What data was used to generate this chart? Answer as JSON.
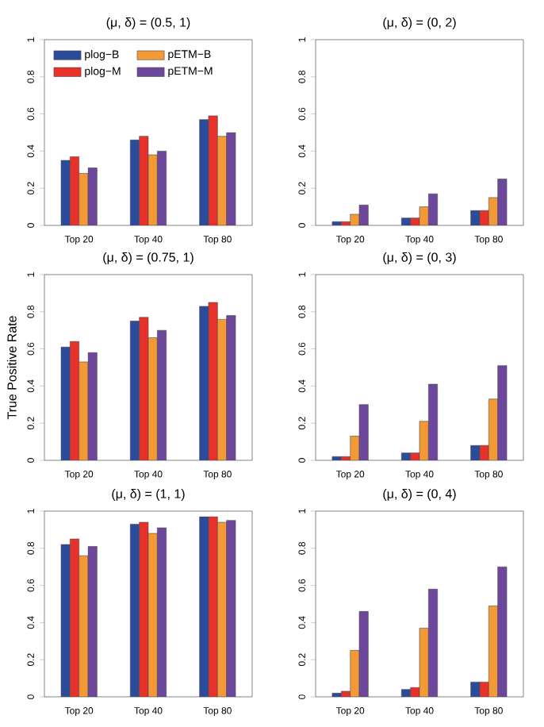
{
  "chart_data": [
    {
      "type": "bar",
      "title": "(μ, δ) = (0.5, 1)",
      "categories": [
        "Top 20",
        "Top 40",
        "Top 80"
      ],
      "ylim": [
        0,
        1
      ],
      "yticks": [
        0,
        0.2,
        0.4,
        0.6,
        0.8,
        1
      ],
      "legend": "top left",
      "series": [
        {
          "name": "plog−B",
          "color": "#2b4b9b",
          "values": [
            0.35,
            0.46,
            0.57
          ]
        },
        {
          "name": "plog−M",
          "color": "#e8312a",
          "values": [
            0.37,
            0.48,
            0.59
          ]
        },
        {
          "name": "pETM−B",
          "color": "#f39a36",
          "values": [
            0.28,
            0.38,
            0.48
          ]
        },
        {
          "name": "pETM−M",
          "color": "#6c479c",
          "values": [
            0.31,
            0.4,
            0.5
          ]
        }
      ]
    },
    {
      "type": "bar",
      "title": "(μ, δ) = (0, 2)",
      "categories": [
        "Top 20",
        "Top 40",
        "Top 80"
      ],
      "ylim": [
        0,
        1
      ],
      "yticks": [
        0,
        0.2,
        0.4,
        0.6,
        0.8,
        1
      ],
      "series": [
        {
          "color": "#2b4b9b",
          "values": [
            0.02,
            0.04,
            0.08
          ]
        },
        {
          "color": "#e8312a",
          "values": [
            0.02,
            0.04,
            0.08
          ]
        },
        {
          "color": "#f39a36",
          "values": [
            0.06,
            0.1,
            0.15
          ]
        },
        {
          "color": "#6c479c",
          "values": [
            0.11,
            0.17,
            0.25
          ]
        }
      ]
    },
    {
      "type": "bar",
      "title": "(μ, δ) = (0.75, 1)",
      "ylabel": "True Positive Rate",
      "categories": [
        "Top 20",
        "Top 40",
        "Top 80"
      ],
      "ylim": [
        0,
        1
      ],
      "yticks": [
        0,
        0.2,
        0.4,
        0.6,
        0.8,
        1
      ],
      "series": [
        {
          "color": "#2b4b9b",
          "values": [
            0.61,
            0.75,
            0.83
          ]
        },
        {
          "color": "#e8312a",
          "values": [
            0.64,
            0.77,
            0.85
          ]
        },
        {
          "color": "#f39a36",
          "values": [
            0.53,
            0.66,
            0.76
          ]
        },
        {
          "color": "#6c479c",
          "values": [
            0.58,
            0.7,
            0.78
          ]
        }
      ]
    },
    {
      "type": "bar",
      "title": "(μ, δ) = (0, 3)",
      "categories": [
        "Top 20",
        "Top 40",
        "Top 80"
      ],
      "ylim": [
        0,
        1
      ],
      "yticks": [
        0,
        0.2,
        0.4,
        0.6,
        0.8,
        1
      ],
      "series": [
        {
          "color": "#2b4b9b",
          "values": [
            0.02,
            0.04,
            0.08
          ]
        },
        {
          "color": "#e8312a",
          "values": [
            0.02,
            0.04,
            0.08
          ]
        },
        {
          "color": "#f39a36",
          "values": [
            0.13,
            0.21,
            0.33
          ]
        },
        {
          "color": "#6c479c",
          "values": [
            0.3,
            0.41,
            0.51
          ]
        }
      ]
    },
    {
      "type": "bar",
      "title": "(μ, δ) = (1, 1)",
      "categories": [
        "Top 20",
        "Top 40",
        "Top 80"
      ],
      "ylim": [
        0,
        1
      ],
      "yticks": [
        0,
        0.2,
        0.4,
        0.6,
        0.8,
        1
      ],
      "series": [
        {
          "color": "#2b4b9b",
          "values": [
            0.82,
            0.93,
            0.97
          ]
        },
        {
          "color": "#e8312a",
          "values": [
            0.85,
            0.94,
            0.97
          ]
        },
        {
          "color": "#f39a36",
          "values": [
            0.76,
            0.88,
            0.94
          ]
        },
        {
          "color": "#6c479c",
          "values": [
            0.81,
            0.91,
            0.95
          ]
        }
      ]
    },
    {
      "type": "bar",
      "title": "(μ, δ) = (0, 4)",
      "categories": [
        "Top 20",
        "Top 40",
        "Top 80"
      ],
      "ylim": [
        0,
        1
      ],
      "yticks": [
        0,
        0.2,
        0.4,
        0.6,
        0.8,
        1
      ],
      "series": [
        {
          "color": "#2b4b9b",
          "values": [
            0.02,
            0.04,
            0.08
          ]
        },
        {
          "color": "#e8312a",
          "values": [
            0.03,
            0.05,
            0.08
          ]
        },
        {
          "color": "#f39a36",
          "values": [
            0.25,
            0.37,
            0.49
          ]
        },
        {
          "color": "#6c479c",
          "values": [
            0.46,
            0.58,
            0.7
          ]
        }
      ]
    }
  ]
}
